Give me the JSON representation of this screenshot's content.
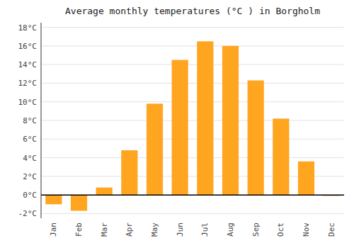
{
  "chart_data": {
    "type": "bar",
    "title": "Average monthly temperatures (°C ) in Borgholm",
    "categories": [
      "Jan",
      "Feb",
      "Mar",
      "Apr",
      "May",
      "Jun",
      "Jul",
      "Aug",
      "Sep",
      "Oct",
      "Nov",
      "Dec"
    ],
    "values": [
      -1.0,
      -1.7,
      0.8,
      4.8,
      9.8,
      14.5,
      16.5,
      16.0,
      12.3,
      8.2,
      3.6,
      -0.1
    ],
    "color": "#FFA520",
    "ylim": [
      -2.5,
      18.5
    ],
    "yticks": [
      {
        "value": -2,
        "label": "-2°C"
      },
      {
        "value": 0,
        "label": "0°C"
      },
      {
        "value": 2,
        "label": "2°C"
      },
      {
        "value": 4,
        "label": "4°C"
      },
      {
        "value": 6,
        "label": "6°C"
      },
      {
        "value": 8,
        "label": "8°C"
      },
      {
        "value": 10,
        "label": "10°C"
      },
      {
        "value": 12,
        "label": "12°C"
      },
      {
        "value": 14,
        "label": "14°C"
      },
      {
        "value": 16,
        "label": "16°C"
      },
      {
        "value": 18,
        "label": "18°C"
      }
    ],
    "grid": true
  }
}
